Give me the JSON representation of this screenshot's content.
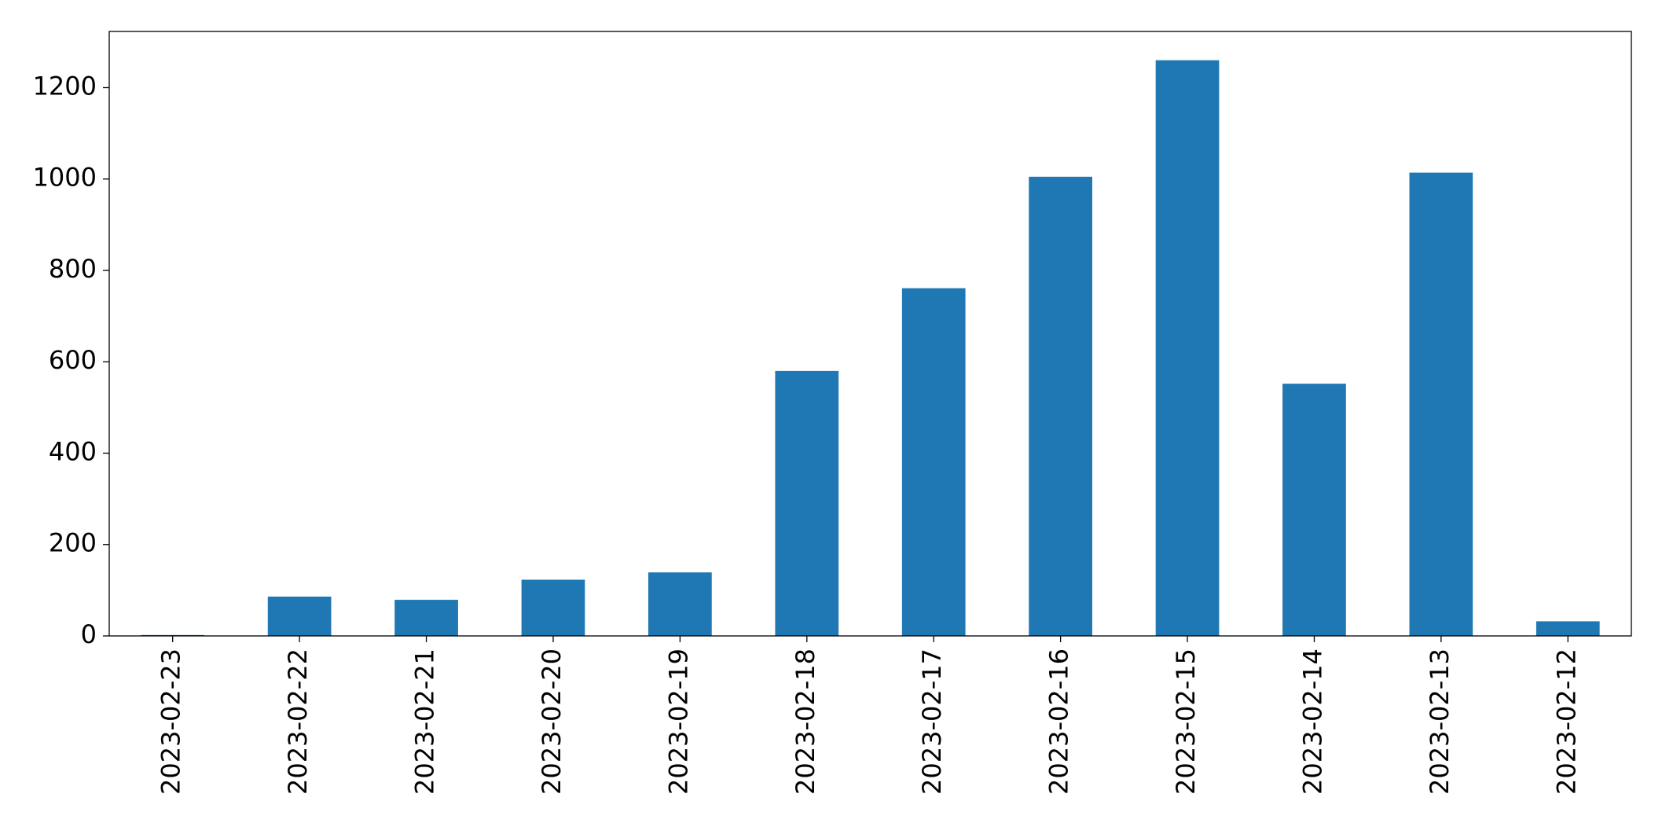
{
  "chart_data": {
    "type": "bar",
    "categories": [
      "2023-02-23",
      "2023-02-22",
      "2023-02-21",
      "2023-02-20",
      "2023-02-19",
      "2023-02-18",
      "2023-02-17",
      "2023-02-16",
      "2023-02-15",
      "2023-02-14",
      "2023-02-13",
      "2023-02-12"
    ],
    "values": [
      2,
      86,
      79,
      123,
      139,
      580,
      761,
      1005,
      1260,
      552,
      1014,
      32
    ],
    "color": "#1f77b4",
    "ylim": [
      0,
      1323
    ],
    "yticks": [
      0,
      200,
      400,
      600,
      800,
      1000,
      1200
    ],
    "grid": false
  }
}
